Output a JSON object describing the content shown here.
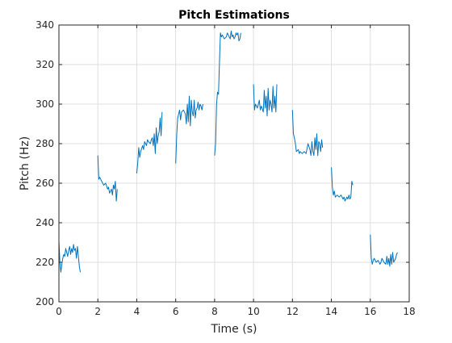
{
  "chart_data": {
    "type": "line",
    "title": "Pitch Estimations",
    "xlabel": "Time (s)",
    "ylabel": "Pitch (Hz)",
    "xlim": [
      0,
      18
    ],
    "ylim": [
      200,
      340
    ],
    "xticks": [
      0,
      2,
      4,
      6,
      8,
      10,
      12,
      14,
      16,
      18
    ],
    "yticks": [
      200,
      220,
      240,
      260,
      280,
      300,
      320,
      340
    ],
    "grid": true,
    "line_color": "#0072BD",
    "series": [
      {
        "segments": [
          {
            "x": [
              0.0,
              0.05,
              0.1,
              0.15,
              0.2,
              0.25,
              0.3,
              0.35,
              0.4,
              0.45,
              0.5,
              0.55,
              0.6,
              0.65,
              0.7,
              0.75,
              0.8,
              0.85,
              0.9,
              0.95,
              1.0,
              1.05,
              1.1
            ],
            "y": [
              231,
              220,
              215,
              219,
              222,
              224,
              223,
              227,
              225,
              223,
              226,
              228,
              224,
              227,
              225,
              229,
              226,
              227,
              222,
              228,
              223,
              218,
              215
            ]
          },
          {
            "x": [
              2.0,
              2.05,
              2.1,
              2.2,
              2.3,
              2.4,
              2.5,
              2.55,
              2.6,
              2.7,
              2.75,
              2.8,
              2.85,
              2.9,
              2.95,
              3.0
            ],
            "y": [
              274,
              262,
              263,
              261,
              259,
              260,
              257,
              258,
              255,
              257,
              254,
              259,
              257,
              261,
              251,
              257
            ]
          },
          {
            "x": [
              4.0,
              4.05,
              4.1,
              4.15,
              4.2,
              4.3,
              4.35,
              4.4,
              4.5,
              4.55,
              4.6,
              4.7,
              4.75,
              4.8,
              4.85,
              4.9,
              4.95,
              5.0,
              5.05,
              5.1,
              5.15,
              5.2,
              5.25,
              5.3
            ],
            "y": [
              265,
              270,
              278,
              273,
              276,
              279,
              277,
              281,
              279,
              282,
              281,
              280,
              282,
              283,
              279,
              285,
              275,
              288,
              280,
              284,
              286,
              293,
              284,
              296
            ]
          },
          {
            "x": [
              6.0,
              6.05,
              6.1,
              6.15,
              6.2,
              6.25,
              6.3,
              6.4,
              6.5,
              6.55,
              6.6,
              6.65,
              6.7,
              6.75,
              6.8,
              6.85,
              6.9,
              6.95,
              7.0,
              7.05,
              7.1,
              7.15,
              7.2,
              7.25,
              7.3,
              7.35,
              7.4
            ],
            "y": [
              270,
              284,
              293,
              295,
              297,
              292,
              296,
              297,
              295,
              290,
              300,
              291,
              304,
              289,
              302,
              296,
              294,
              302,
              293,
              297,
              298,
              301,
              297,
              300,
              299,
              297,
              300
            ]
          },
          {
            "x": [
              8.0,
              8.05,
              8.1,
              8.15,
              8.2,
              8.25,
              8.3,
              8.35,
              8.4,
              8.5,
              8.6,
              8.65,
              8.7,
              8.8,
              8.85,
              8.9,
              8.95,
              9.0,
              9.05,
              9.1,
              9.15,
              9.2,
              9.25,
              9.3,
              9.35
            ],
            "y": [
              274,
              280,
              300,
              306,
              305,
              321,
              336,
              334,
              335,
              333,
              334,
              336,
              335,
              333,
              337,
              334,
              335,
              333,
              334,
              336,
              335,
              336,
              332,
              333,
              336
            ]
          },
          {
            "x": [
              10.0,
              10.05,
              10.1,
              10.2,
              10.3,
              10.35,
              10.4,
              10.5,
              10.55,
              10.6,
              10.65,
              10.7,
              10.75,
              10.8,
              10.85,
              10.9,
              10.95,
              11.0,
              11.05,
              11.1,
              11.15,
              11.2
            ],
            "y": [
              310,
              297,
              300,
              298,
              302,
              297,
              299,
              296,
              307,
              298,
              304,
              294,
              308,
              297,
              302,
              300,
              296,
              309,
              298,
              304,
              296,
              310
            ]
          },
          {
            "x": [
              12.0,
              12.05,
              12.1,
              12.15,
              12.2,
              12.3,
              12.35,
              12.4,
              12.5,
              12.6,
              12.7,
              12.8,
              12.9,
              12.95,
              13.0,
              13.05,
              13.1,
              13.15,
              13.2,
              13.25,
              13.3,
              13.35,
              13.4,
              13.45,
              13.5,
              13.55
            ],
            "y": [
              297,
              285,
              283,
              280,
              276,
              277,
              275,
              276,
              275,
              276,
              275,
              280,
              277,
              274,
              281,
              276,
              274,
              283,
              277,
              285,
              274,
              281,
              280,
              276,
              282,
              278
            ]
          },
          {
            "x": [
              14.0,
              14.05,
              14.1,
              14.15,
              14.2,
              14.3,
              14.4,
              14.5,
              14.6,
              14.65,
              14.7,
              14.8,
              14.85,
              14.9,
              14.95,
              15.0,
              15.05,
              15.1
            ],
            "y": [
              268,
              258,
              254,
              256,
              253,
              254,
              253,
              254,
              252,
              253,
              251,
              253,
              252,
              254,
              252,
              253,
              261,
              259
            ]
          },
          {
            "x": [
              16.0,
              16.05,
              16.1,
              16.15,
              16.2,
              16.3,
              16.4,
              16.5,
              16.55,
              16.6,
              16.7,
              16.8,
              16.85,
              16.9,
              16.95,
              17.0,
              17.05,
              17.1,
              17.15,
              17.2,
              17.25,
              17.3,
              17.35,
              17.4
            ],
            "y": [
              234,
              222,
              219,
              221,
              222,
              220,
              221,
              219,
              220,
              222,
              220,
              219,
              223,
              219,
              222,
              218,
              224,
              219,
              225,
              220,
              221,
              222,
              224,
              225
            ]
          }
        ]
      }
    ]
  }
}
